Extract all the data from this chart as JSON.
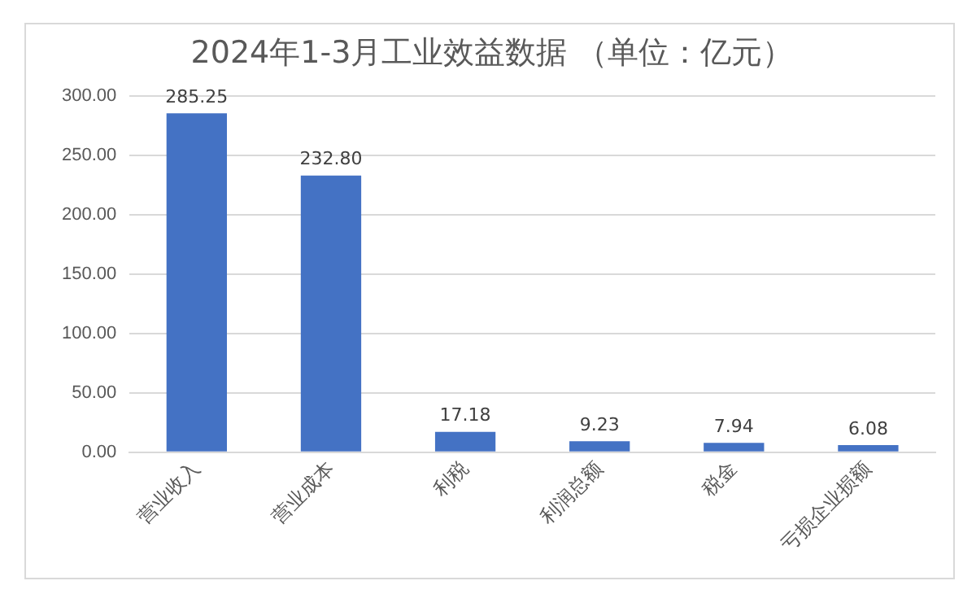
{
  "chart_data": {
    "type": "bar",
    "title": "2024年1-3月工业效益数据 （单位：亿元）",
    "categories": [
      "营业收入",
      "营业成本",
      "利税",
      "利润总额",
      "税金",
      "亏损企业损额"
    ],
    "values": [
      285.25,
      232.8,
      17.18,
      9.23,
      7.94,
      6.08
    ],
    "value_labels": [
      "285.25",
      "232.80",
      "17.18",
      "9.23",
      "7.94",
      "6.08"
    ],
    "color": "#4472c4",
    "ylim": [
      0,
      300
    ],
    "yticks": [
      {
        "value": 0,
        "label": "0.00"
      },
      {
        "value": 50,
        "label": "50.00"
      },
      {
        "value": 100,
        "label": "100.00"
      },
      {
        "value": 150,
        "label": "150.00"
      },
      {
        "value": 200,
        "label": "200.00"
      },
      {
        "value": 250,
        "label": "250.00"
      },
      {
        "value": 300,
        "label": "300.00"
      }
    ],
    "grid": "y",
    "legend": false
  }
}
